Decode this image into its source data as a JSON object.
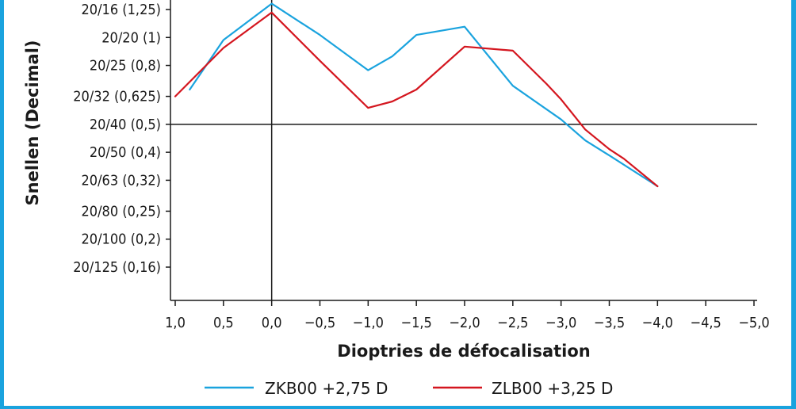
{
  "chart_data": {
    "type": "line",
    "xlabel": "Dioptries de défocalisation",
    "ylabel": "Snellen (Decimal)",
    "x_ticks": [
      "1,0",
      "0,5",
      "0,0",
      "−0,5",
      "−1,0",
      "−1,5",
      "−2,0",
      "−2,5",
      "−3,0",
      "−3,5",
      "−4,0",
      "−4,5",
      "−5,0"
    ],
    "x_tick_values": [
      1.0,
      0.5,
      0.0,
      -0.5,
      -1.0,
      -1.5,
      -2.0,
      -2.5,
      -3.0,
      -3.5,
      -4.0,
      -4.5,
      -5.0
    ],
    "xlim": [
      1.05,
      -5.0
    ],
    "y_ticks": [
      "20/16 (1,25)",
      "20/20 (1)",
      "20/25 (0,8)",
      "20/32 (0,625)",
      "20/40 (0,5)",
      "20/50 (0,4)",
      "20/63 (0,32)",
      "20/80 (0,25)",
      "20/100 (0,2)",
      "20/125 (0,16)"
    ],
    "y_tick_values": [
      1.25,
      1.0,
      0.8,
      0.625,
      0.5,
      0.4,
      0.32,
      0.25,
      0.2,
      0.16
    ],
    "y_scale": "log",
    "ylim": [
      0.125,
      1.3
    ],
    "reference_lines": {
      "x": 0.0,
      "y": 0.5
    },
    "grid": false,
    "legend_position": "bottom",
    "series": [
      {
        "name": "ZKB00 +2,75 D",
        "color": "#1aa3de",
        "x": [
          0.85,
          0.5,
          0.0,
          -0.5,
          -1.0,
          -1.25,
          -1.5,
          -2.0,
          -2.5,
          -3.0,
          -3.25,
          -3.5,
          -4.0
        ],
        "y": [
          0.66,
          0.98,
          1.31,
          1.02,
          0.77,
          0.86,
          1.02,
          1.09,
          0.68,
          0.52,
          0.44,
          0.39,
          0.305
        ]
      },
      {
        "name": "ZLB00 +3,25 D",
        "color": "#d4161f",
        "x": [
          1.0,
          0.5,
          0.0,
          -0.5,
          -1.0,
          -1.25,
          -1.5,
          -2.0,
          -2.5,
          -2.85,
          -3.0,
          -3.25,
          -3.5,
          -3.65,
          -4.0
        ],
        "y": [
          0.625,
          0.92,
          1.22,
          0.83,
          0.57,
          0.6,
          0.66,
          0.93,
          0.9,
          0.69,
          0.61,
          0.48,
          0.41,
          0.38,
          0.305
        ]
      }
    ]
  }
}
